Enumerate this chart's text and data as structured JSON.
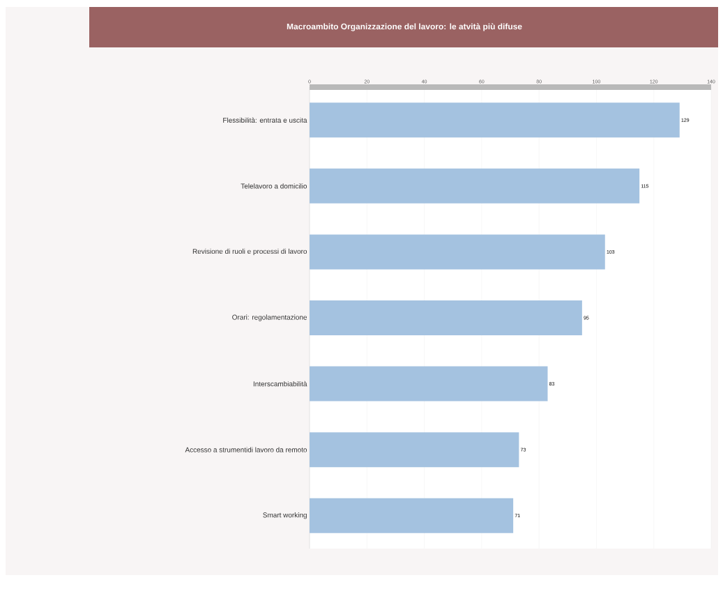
{
  "chart_data": {
    "type": "bar",
    "orientation": "horizontal",
    "title": "Macroambito Organizzazione del lavoro: le atvità più difuse",
    "categories": [
      "Flessibilità: entrata e uscita",
      "Telelavoro a domicilio",
      "Revisione di ruoli e processi di lavoro",
      "Orari: regolamentazione",
      "Interscambiabilità",
      "Accesso a strumentidi lavoro da remoto",
      "Smart working"
    ],
    "values": [
      129,
      115,
      103,
      95,
      83,
      73,
      71
    ],
    "color": "#a4c2e0",
    "xlim": [
      0,
      140
    ],
    "xticks": [
      0,
      20,
      40,
      60,
      80,
      100,
      120,
      140
    ],
    "grid": "x",
    "data_labels": true
  }
}
